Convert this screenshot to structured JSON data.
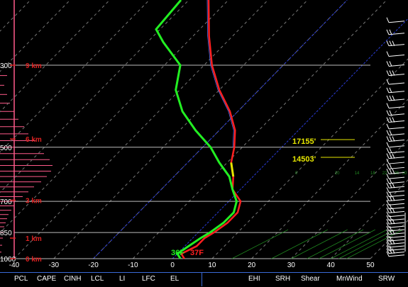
{
  "chart_data": {
    "type": "line",
    "title": "",
    "xlabel": "",
    "ylabel": "",
    "x_ticks": [
      -40,
      -30,
      -20,
      -10,
      0,
      10,
      20,
      30,
      40,
      50
    ],
    "xlim": [
      -40,
      50
    ],
    "pressure_levels": [
      300,
      500,
      700,
      850,
      1000
    ],
    "pressure_labels": [
      "300",
      "500",
      "700",
      "850",
      "1000"
    ],
    "height_markers": [
      {
        "label": "9 km",
        "pressure": 300
      },
      {
        "label": "6 km",
        "pressure": 475
      },
      {
        "label": "3 km",
        "pressure": 695
      },
      {
        "label": "1 km",
        "pressure": 880
      },
      {
        "label": "0 km",
        "pressure": 1000
      }
    ],
    "series": [
      {
        "color": "#ff2020",
        "values": [
          {
            "p": 1000,
            "t": 3
          },
          {
            "p": 970,
            "t": 1
          },
          {
            "p": 925,
            "t": 3
          },
          {
            "p": 880,
            "t": 3
          },
          {
            "p": 850,
            "t": 4
          },
          {
            "p": 800,
            "t": 5
          },
          {
            "p": 750,
            "t": 5
          },
          {
            "p": 700,
            "t": 3
          },
          {
            "p": 650,
            "t": -2
          },
          {
            "p": 600,
            "t": -5
          },
          {
            "p": 550,
            "t": -9
          },
          {
            "p": 500,
            "t": -12
          },
          {
            "p": 450,
            "t": -16
          },
          {
            "p": 400,
            "t": -22
          },
          {
            "p": 350,
            "t": -30
          },
          {
            "p": 300,
            "t": -38
          },
          {
            "p": 250,
            "t": -46
          },
          {
            "p": 200,
            "t": -55
          }
        ]
      },
      {
        "color": "#22ee22",
        "values": [
          {
            "p": 1000,
            "t": 2
          },
          {
            "p": 970,
            "t": 0
          },
          {
            "p": 925,
            "t": 1
          },
          {
            "p": 880,
            "t": 2
          },
          {
            "p": 850,
            "t": 3
          },
          {
            "p": 800,
            "t": 4
          },
          {
            "p": 750,
            "t": 4
          },
          {
            "p": 700,
            "t": 2
          },
          {
            "p": 650,
            "t": -2
          },
          {
            "p": 600,
            "t": -6
          },
          {
            "p": 550,
            "t": -12
          },
          {
            "p": 500,
            "t": -18
          },
          {
            "p": 450,
            "t": -26
          },
          {
            "p": 400,
            "t": -34
          },
          {
            "p": 350,
            "t": -41
          },
          {
            "p": 300,
            "t": -46
          },
          {
            "p": 260,
            "t": -56
          },
          {
            "p": 240,
            "t": -61
          },
          {
            "p": 200,
            "t": -62
          }
        ]
      }
    ],
    "annotations": [
      {
        "text": "17155'",
        "color": "#e6e600"
      },
      {
        "text": "14503'",
        "color": "#e6e600"
      }
    ],
    "surface_labels": [
      {
        "text": "36F",
        "color": "#22ee22"
      },
      {
        "text": "37F",
        "color": "#ff2020"
      }
    ],
    "wetbulb_labels": [
      "0",
      "10",
      "14",
      "18",
      "22",
      "26",
      "30",
      "34"
    ],
    "colors": {
      "background": "#000000",
      "isobar": "#bbbbbb",
      "isotherm": "#777777",
      "zero_isotherm": "#2a3cd8",
      "height_label": "#dd2222",
      "wind_profile": "#ff5a8a",
      "wetbulb": "#208820",
      "panel_border": "#3a6ad8"
    },
    "wind_profile_bars": [
      {
        "p": 320,
        "len": 10
      },
      {
        "p": 340,
        "len": 6
      },
      {
        "p": 360,
        "len": 10
      },
      {
        "p": 380,
        "len": 14
      },
      {
        "p": 400,
        "len": 20
      },
      {
        "p": 420,
        "len": 26
      },
      {
        "p": 440,
        "len": 34
      },
      {
        "p": 460,
        "len": 40
      },
      {
        "p": 480,
        "len": 50
      },
      {
        "p": 500,
        "len": 56
      },
      {
        "p": 520,
        "len": 62
      },
      {
        "p": 540,
        "len": 70
      },
      {
        "p": 560,
        "len": 74
      },
      {
        "p": 580,
        "len": 72
      },
      {
        "p": 600,
        "len": 66
      },
      {
        "p": 620,
        "len": 58
      },
      {
        "p": 640,
        "len": 48
      },
      {
        "p": 660,
        "len": 40
      },
      {
        "p": 680,
        "len": 32
      },
      {
        "p": 700,
        "len": 26
      },
      {
        "p": 720,
        "len": 20
      },
      {
        "p": 740,
        "len": 16
      },
      {
        "p": 760,
        "len": 12
      },
      {
        "p": 780,
        "len": 10
      },
      {
        "p": 800,
        "len": 8
      },
      {
        "p": 820,
        "len": 6
      },
      {
        "p": 850,
        "len": 5
      },
      {
        "p": 880,
        "len": 4
      },
      {
        "p": 920,
        "len": 3
      },
      {
        "p": 960,
        "len": 2
      }
    ]
  },
  "params_header": {
    "left": [
      "PCL",
      "CAPE",
      "CINH",
      "LCL",
      "LI",
      "LFC",
      "EL"
    ],
    "right": [
      "EHI",
      "SRH",
      "Shear",
      "MnWind",
      "SRW"
    ]
  }
}
